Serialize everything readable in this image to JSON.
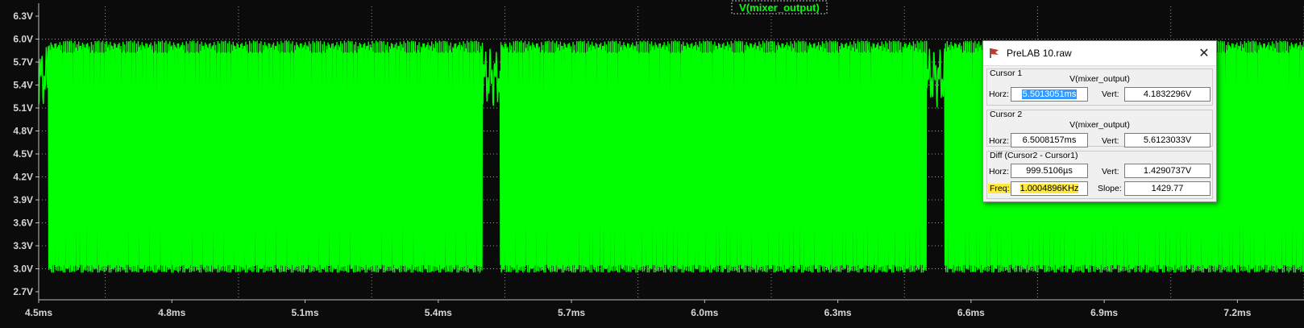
{
  "plot": {
    "trace_label": "V(mixer_output)",
    "trace_color": "#00ff00",
    "background": "#0b0b0b",
    "y_ticks": [
      "6.3V",
      "6.0V",
      "5.7V",
      "5.4V",
      "5.1V",
      "4.8V",
      "4.5V",
      "4.2V",
      "3.9V",
      "3.6V",
      "3.3V",
      "3.0V",
      "2.7V"
    ],
    "x_ticks": [
      "4.5ms",
      "4.8ms",
      "5.1ms",
      "5.4ms",
      "5.7ms",
      "6.0ms",
      "6.3ms",
      "6.6ms",
      "6.9ms",
      "7.2ms"
    ]
  },
  "dialog": {
    "title": "PreLAB 10.raw",
    "cursor1": {
      "title": "Cursor 1",
      "trace": "V(mixer_output)",
      "horz_label": "Horz:",
      "horz": "5.5013051ms",
      "vert_label": "Vert:",
      "vert": "4.1832296V"
    },
    "cursor2": {
      "title": "Cursor 2",
      "trace": "V(mixer_output)",
      "horz_label": "Horz:",
      "horz": "6.5008157ms",
      "vert_label": "Vert:",
      "vert": "5.6123033V"
    },
    "diff": {
      "title": "Diff (Cursor2 - Cursor1)",
      "horz_label": "Horz:",
      "horz": "999.5106µs",
      "vert_label": "Vert:",
      "vert": "1.4290737V",
      "freq_label": "Freq:",
      "freq": "1.0004896KHz",
      "slope_label": "Slope:",
      "slope": "1429.77"
    }
  }
}
